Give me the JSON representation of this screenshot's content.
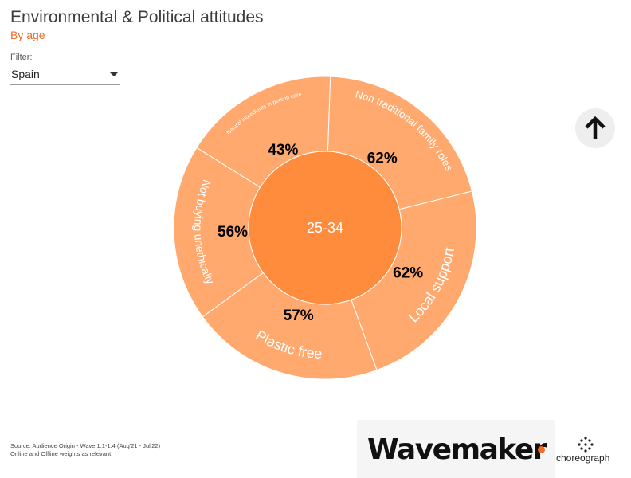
{
  "header": {
    "title": "Environmental & Political attitudes",
    "subtitle": "By age"
  },
  "filter": {
    "label": "Filter:",
    "selected": "Spain"
  },
  "chart_data": {
    "type": "sunburst",
    "center": {
      "label": "25-34"
    },
    "segments": [
      {
        "label": "Non traditional family roles",
        "value": 62
      },
      {
        "label": "Local support",
        "value": 62
      },
      {
        "label": "Plastic free",
        "value": 57
      },
      {
        "label": "Not buying unethically",
        "value": 56
      },
      {
        "label": "Natural ingredients in person care",
        "value": 43
      }
    ],
    "value_format": "percent",
    "colors": {
      "center": "#ff8b3d",
      "segment": "#ffa96f",
      "border": "#ffffff",
      "text": "#ffffff",
      "value_text": "#000000"
    }
  },
  "footer": {
    "source_line1": "Source: Audience Origin - Wave 1.1-1.4 (Aug'21 - Jul'22)",
    "source_line2": "Online and Offline weights as relevant",
    "logo_wavemaker": "Wavemaker",
    "logo_choreograph": "choreograph",
    "accent": "#f26b21"
  },
  "icons": {
    "scroll_top": "arrow-up-icon"
  }
}
